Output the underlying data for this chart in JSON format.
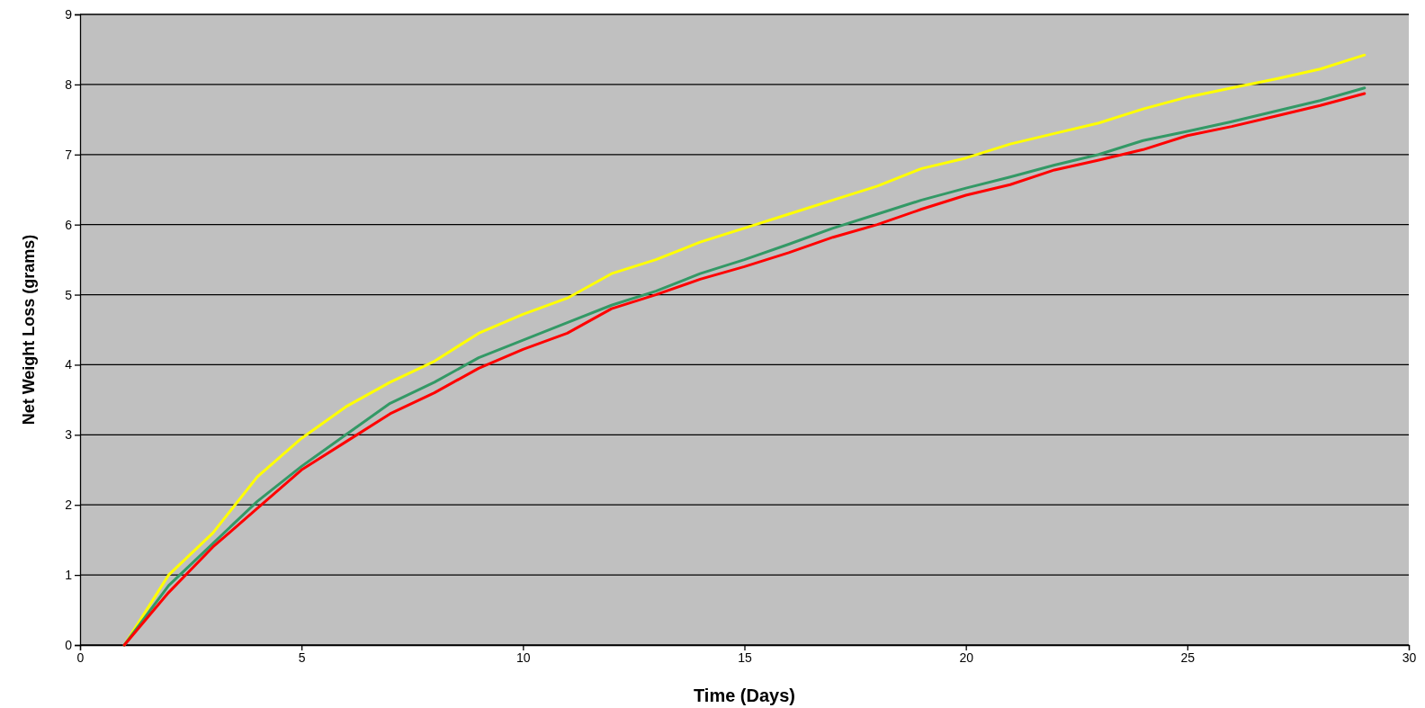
{
  "chart_data": {
    "type": "line",
    "xlabel": "Time (Days)",
    "ylabel": "Net Weight Loss (grams)",
    "x": [
      1,
      2,
      3,
      4,
      5,
      6,
      7,
      8,
      9,
      10,
      11,
      12,
      13,
      14,
      15,
      16,
      17,
      18,
      19,
      20,
      21,
      22,
      23,
      24,
      25,
      26,
      27,
      28,
      29
    ],
    "series": [
      {
        "color": "#ffff00",
        "values": [
          0,
          1.0,
          1.6,
          2.4,
          2.95,
          3.4,
          3.75,
          4.05,
          4.45,
          4.72,
          4.95,
          5.3,
          5.5,
          5.75,
          5.95,
          6.15,
          6.35,
          6.55,
          6.8,
          6.95,
          7.15,
          7.3,
          7.45,
          7.65,
          7.82,
          7.95,
          8.08,
          8.22,
          8.42
        ]
      },
      {
        "color": "#339966",
        "values": [
          0,
          0.85,
          1.45,
          2.05,
          2.55,
          3.0,
          3.45,
          3.75,
          4.1,
          4.35,
          4.6,
          4.85,
          5.05,
          5.3,
          5.5,
          5.72,
          5.95,
          6.15,
          6.35,
          6.52,
          6.68,
          6.85,
          7.0,
          7.2,
          7.33,
          7.47,
          7.62,
          7.77,
          7.95
        ]
      },
      {
        "color": "#ff0000",
        "values": [
          0,
          0.75,
          1.4,
          1.95,
          2.5,
          2.9,
          3.3,
          3.6,
          3.95,
          4.22,
          4.45,
          4.8,
          5.0,
          5.22,
          5.4,
          5.6,
          5.82,
          6.0,
          6.22,
          6.42,
          6.57,
          6.78,
          6.92,
          7.07,
          7.27,
          7.4,
          7.55,
          7.7,
          7.87
        ]
      }
    ],
    "xlim": [
      0,
      30
    ],
    "xticks": [
      0,
      5,
      10,
      15,
      20,
      25,
      30
    ],
    "ylim": [
      0,
      9
    ],
    "yticks": [
      0,
      1,
      2,
      3,
      4,
      5,
      6,
      7,
      8,
      9
    ],
    "grid": "y",
    "marker": "none",
    "line_style": "solid"
  }
}
